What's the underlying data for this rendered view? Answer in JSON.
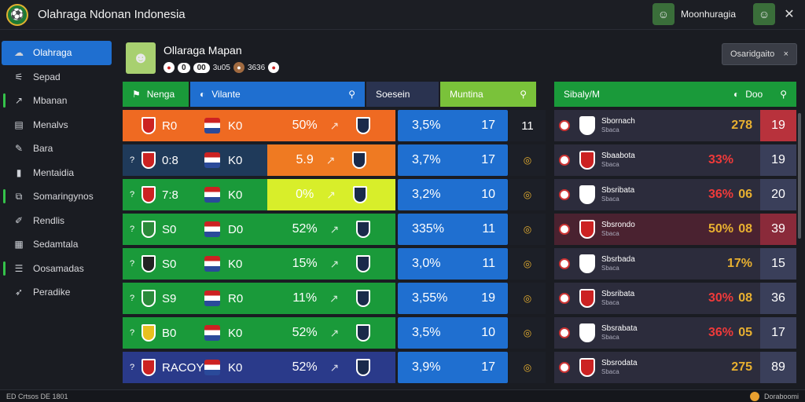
{
  "app": {
    "title": "Olahraga Ndonan Indonesia",
    "user": "Moonhuragia"
  },
  "sidebar": {
    "items": [
      {
        "label": "Olahraga",
        "icon": "cloud-icon",
        "glyph": "☁",
        "active": true
      },
      {
        "label": "Sepad",
        "icon": "chart-icon",
        "glyph": "⚟"
      },
      {
        "label": "Mbanan",
        "icon": "trend-icon",
        "glyph": "↗",
        "mark": true
      },
      {
        "label": "Menalvs",
        "icon": "grid-icon",
        "glyph": "▤"
      },
      {
        "label": "Bara",
        "icon": "pen-icon",
        "glyph": "✎"
      },
      {
        "label": "Mentaidia",
        "icon": "stats-icon",
        "glyph": "▮"
      },
      {
        "label": "Somaringynos",
        "icon": "layers-icon",
        "glyph": "⧉",
        "mark": true
      },
      {
        "label": "Rendlis",
        "icon": "edit-icon",
        "glyph": "✐"
      },
      {
        "label": "Sedamtala",
        "icon": "calendar-icon",
        "glyph": "▦"
      },
      {
        "label": "Oosamadas",
        "icon": "list-icon",
        "glyph": "☰",
        "mark": true
      },
      {
        "label": "Peradike",
        "icon": "pin-icon",
        "glyph": "➶"
      }
    ]
  },
  "header": {
    "title": "Ollaraga Mapan",
    "chip1": "0",
    "chip2": "00",
    "v1": "3u05",
    "v2": "3636"
  },
  "category_button": {
    "label": "Osaridgaito",
    "close": "×"
  },
  "tabs": [
    {
      "label": "Nenga",
      "glyph": "⚑",
      "bg": "#1a9a3a",
      "width": 84
    },
    {
      "label": "Vilante",
      "glyph": "◐",
      "bg": "#1f6fd0",
      "width": 222,
      "search": true
    },
    {
      "label": "Soesein",
      "glyph": "",
      "bg": "#2a3350",
      "width": 92
    },
    {
      "label": "Muntina",
      "glyph": "",
      "bg": "#7ac23a",
      "width": 122,
      "search": true
    }
  ],
  "right_head": {
    "label": "Sibaly/M",
    "v": "Doo"
  },
  "rows": [
    {
      "rank": "",
      "score": "R0",
      "team": "K0",
      "pct": "50%",
      "b1": "3,5%",
      "b2": "17",
      "c": "11",
      "colA": "#ef6a22",
      "colMid": "#ef6a22",
      "crest": "#c22"
    },
    {
      "rank": "?",
      "score": "0:8",
      "team": "K0",
      "pct": "5.9",
      "b1": "3,7%",
      "b2": "17",
      "c": "",
      "colA": "#1f3a5a",
      "colMid": "#ef7a22",
      "crest": "#c22"
    },
    {
      "rank": "?",
      "score": "7:8",
      "team": "K0",
      "pct": "0%",
      "b1": "3,2%",
      "b2": "10",
      "c": "",
      "colA": "#1a9a3a",
      "colMid": "#d8ee2a",
      "crest": "#c22"
    },
    {
      "rank": "?",
      "score": "S0",
      "team": "D0",
      "pct": "52%",
      "b1": "335%",
      "b2": "11",
      "c": "",
      "colA": "#1a9a3a",
      "colMid": "#1a9a3a",
      "crest": "#2a8a3a"
    },
    {
      "rank": "?",
      "score": "S0",
      "team": "K0",
      "pct": "15%",
      "b1": "3,0%",
      "b2": "11",
      "c": "",
      "colA": "#1a9a3a",
      "colMid": "#1a9a3a",
      "crest": "#222"
    },
    {
      "rank": "?",
      "score": "S9",
      "team": "R0",
      "pct": "11%",
      "b1": "3,55%",
      "b2": "19",
      "c": "",
      "colA": "#1a9a3a",
      "colMid": "#1a9a3a",
      "crest": "#2a8a3a"
    },
    {
      "rank": "?",
      "score": "B0",
      "team": "K0",
      "pct": "52%",
      "b1": "3,5%",
      "b2": "10",
      "c": "",
      "colA": "#1a9a3a",
      "colMid": "#1a9a3a",
      "crest": "#e8c020"
    },
    {
      "rank": "?",
      "score": "RACOY",
      "team": "K0",
      "pct": "52%",
      "b1": "3,9%",
      "b2": "17",
      "c": "",
      "colA": "#2a3a8a",
      "colMid": "#2a3a8a",
      "crest": "#c22"
    }
  ],
  "right_rows": [
    {
      "name": "Sbornach",
      "sub": "Sbaca",
      "pct": "",
      "score": "278",
      "last": "19",
      "lastbg": "#b8323c"
    },
    {
      "name": "Sbaabota",
      "sub": "Sbaca",
      "pct": "33%",
      "score": "",
      "last": "19",
      "lastbg": "#3a3f5a"
    },
    {
      "name": "Sbsribata",
      "sub": "Sbaca",
      "pct": "36%",
      "score": "06",
      "last": "20",
      "lastbg": "#3a3f5a"
    },
    {
      "name": "Sbsrondo",
      "sub": "Sbaca",
      "pct": "50%",
      "score": "08",
      "last": "39",
      "lastbg": "#8a2a3a"
    },
    {
      "name": "Sbsrbada",
      "sub": "Sbaca",
      "pct": "",
      "score": "17%",
      "last": "15",
      "lastbg": "#3a3f5a"
    },
    {
      "name": "Sbsribata",
      "sub": "Sbaca",
      "pct": "30%",
      "score": "08",
      "last": "36",
      "lastbg": "#3a3f5a"
    },
    {
      "name": "Sbsrabata",
      "sub": "Sbaca",
      "pct": "36%",
      "score": "05",
      "last": "17",
      "lastbg": "#3a3f5a"
    },
    {
      "name": "Sbsrodata",
      "sub": "Sbaca",
      "pct": "",
      "score": "275",
      "last": "89",
      "lastbg": "#3a3f5a"
    }
  ],
  "footer": {
    "left": "ED Crtsos DE 1801",
    "right": "Doraboomi"
  }
}
